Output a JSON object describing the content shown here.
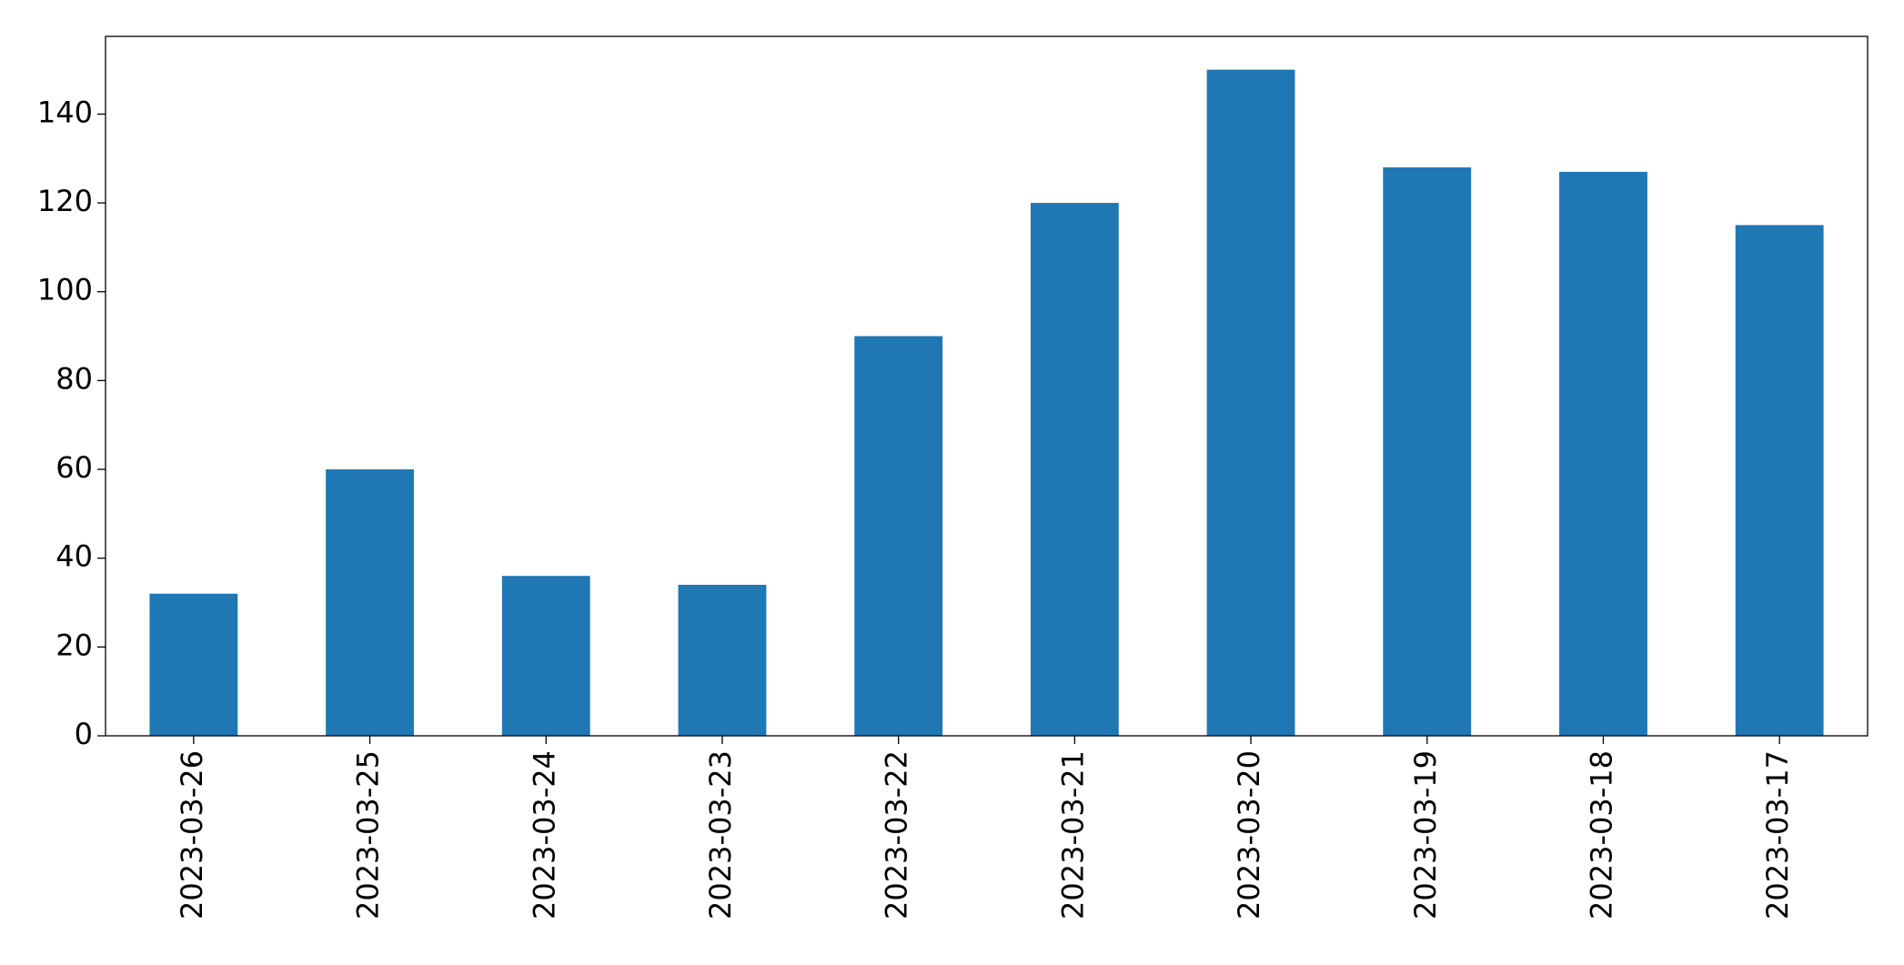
{
  "chart_data": {
    "type": "bar",
    "categories": [
      "2023-03-26",
      "2023-03-25",
      "2023-03-24",
      "2023-03-23",
      "2023-03-22",
      "2023-03-21",
      "2023-03-20",
      "2023-03-19",
      "2023-03-18",
      "2023-03-17"
    ],
    "values": [
      32,
      60,
      36,
      34,
      90,
      120,
      150,
      128,
      127,
      115
    ],
    "color": "#1f77b4",
    "ylim": [
      0,
      157.5
    ],
    "yticks": [
      0,
      20,
      40,
      60,
      80,
      100,
      120,
      140
    ],
    "grid": false
  }
}
